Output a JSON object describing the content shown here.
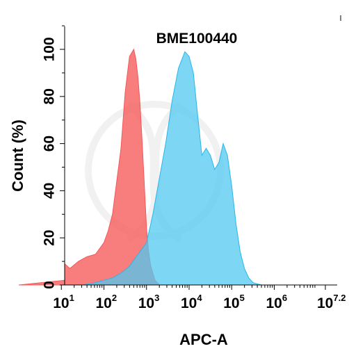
{
  "chart_data": {
    "type": "area",
    "title": "BME100440",
    "xlabel": "APC-A",
    "ylabel": "Count (%)",
    "x_scale": "log10",
    "xlim": [
      0,
      7.2
    ],
    "ylim": [
      0,
      110
    ],
    "grid": false,
    "y_ticks": [
      "0",
      "20",
      "40",
      "60",
      "80",
      "100"
    ],
    "y_tick_values": [
      0,
      20,
      40,
      60,
      80,
      100
    ],
    "x_ticks": [
      {
        "value": 1,
        "base": "10",
        "exp": "1"
      },
      {
        "value": 2,
        "base": "10",
        "exp": "2"
      },
      {
        "value": 3,
        "base": "10",
        "exp": "3"
      },
      {
        "value": 4,
        "base": "10",
        "exp": "4"
      },
      {
        "value": 5,
        "base": "10",
        "exp": "5"
      },
      {
        "value": 6,
        "base": "10",
        "exp": "6"
      },
      {
        "value": 7.2,
        "base": "10",
        "exp": "7.2"
      }
    ],
    "series": [
      {
        "color": "#f25959",
        "fill": "rgba(246,88,88,0.78)",
        "x": [
          0.0,
          0.25,
          0.5,
          0.75,
          1.0,
          1.2,
          1.4,
          1.6,
          1.8,
          2.0,
          2.1,
          2.2,
          2.3,
          2.4,
          2.5,
          2.6,
          2.7,
          2.75,
          2.8,
          2.85,
          2.9,
          2.95,
          3.0,
          3.05,
          3.1,
          3.15,
          3.2,
          3.25,
          3.3
        ],
        "y": [
          2,
          5,
          3,
          6,
          9,
          7,
          10,
          12,
          13,
          18,
          23,
          30,
          44,
          58,
          82,
          97,
          100,
          96,
          88,
          76,
          60,
          42,
          24,
          14,
          8,
          5,
          2,
          1,
          0
        ]
      },
      {
        "color": "#29b6e8",
        "fill": "rgba(80,200,240,0.75)",
        "x": [
          1.5,
          1.8,
          2.0,
          2.2,
          2.4,
          2.6,
          2.8,
          3.0,
          3.15,
          3.3,
          3.45,
          3.6,
          3.75,
          3.9,
          4.0,
          4.1,
          4.2,
          4.3,
          4.4,
          4.5,
          4.6,
          4.7,
          4.8,
          4.9,
          5.0,
          5.1,
          5.2,
          5.3,
          5.4,
          5.5,
          5.6,
          5.7,
          5.8
        ],
        "y": [
          0,
          1,
          2,
          3,
          5,
          8,
          13,
          18,
          30,
          45,
          60,
          78,
          92,
          99,
          97,
          90,
          72,
          55,
          58,
          55,
          49,
          52,
          60,
          55,
          42,
          26,
          14,
          7,
          3,
          1,
          0.5,
          0,
          0
        ]
      }
    ]
  }
}
